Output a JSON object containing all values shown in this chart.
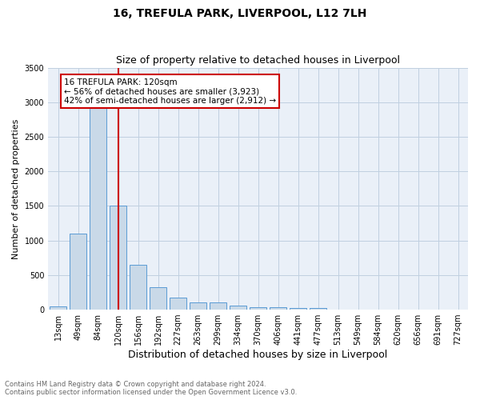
{
  "title1": "16, TREFULA PARK, LIVERPOOL, L12 7LH",
  "title2": "Size of property relative to detached houses in Liverpool",
  "xlabel": "Distribution of detached houses by size in Liverpool",
  "ylabel": "Number of detached properties",
  "footnote1": "Contains HM Land Registry data © Crown copyright and database right 2024.",
  "footnote2": "Contains public sector information licensed under the Open Government Licence v3.0.",
  "categories": [
    "13sqm",
    "49sqm",
    "84sqm",
    "120sqm",
    "156sqm",
    "192sqm",
    "227sqm",
    "263sqm",
    "299sqm",
    "334sqm",
    "370sqm",
    "406sqm",
    "441sqm",
    "477sqm",
    "513sqm",
    "549sqm",
    "584sqm",
    "620sqm",
    "656sqm",
    "691sqm",
    "727sqm"
  ],
  "values": [
    50,
    1100,
    2950,
    1500,
    650,
    330,
    175,
    100,
    100,
    55,
    35,
    35,
    25,
    20,
    0,
    0,
    0,
    0,
    0,
    0,
    0
  ],
  "bar_color": "#c9d9e8",
  "bar_edge_color": "#5b9bd5",
  "vline_x_index": 3,
  "vline_color": "#cc0000",
  "annotation_text": "16 TREFULA PARK: 120sqm\n← 56% of detached houses are smaller (3,923)\n42% of semi-detached houses are larger (2,912) →",
  "annotation_box_color": "#cc0000",
  "ylim": [
    0,
    3500
  ],
  "yticks": [
    0,
    500,
    1000,
    1500,
    2000,
    2500,
    3000,
    3500
  ],
  "grid_color": "#c0d0e0",
  "background_color": "#eaf0f8",
  "title1_fontsize": 10,
  "title2_fontsize": 9,
  "xlabel_fontsize": 9,
  "ylabel_fontsize": 8,
  "tick_fontsize": 7,
  "annotation_fontsize": 7.5,
  "footnote_fontsize": 6
}
